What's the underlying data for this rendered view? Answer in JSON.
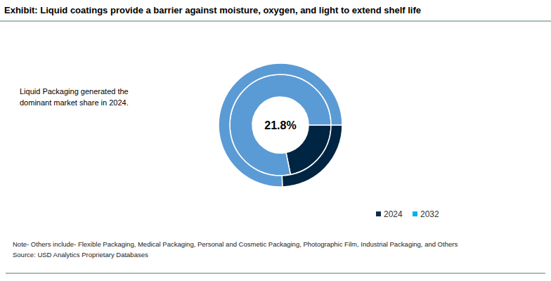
{
  "chart_data": {
    "type": "donut",
    "title": "Exhibit: Liquid coatings provide a barrier against moisture, oxygen, and light to extend shelf life",
    "annotation": "Liquid Packaging  generated the dominant market share in 2024.",
    "series": [
      {
        "name": "2024",
        "color": "#0d2b4a",
        "values": [
          21.8,
          78.2
        ],
        "value_labels": [
          "21.8%",
          null
        ]
      },
      {
        "name": "2032",
        "color": "#00b0f0",
        "values": [
          24.5,
          75.5
        ]
      }
    ],
    "colors": [
      "#002542",
      "#5b9bd5"
    ],
    "legend": "bottom-right",
    "note": "Note- Others include- Flexible Packaging, Medical Packaging, Personal and Cosmetic Packaging, Photographic Film, Industrial Packaging, and Others",
    "source": "Source: USD Analytics Proprietary Databases"
  }
}
